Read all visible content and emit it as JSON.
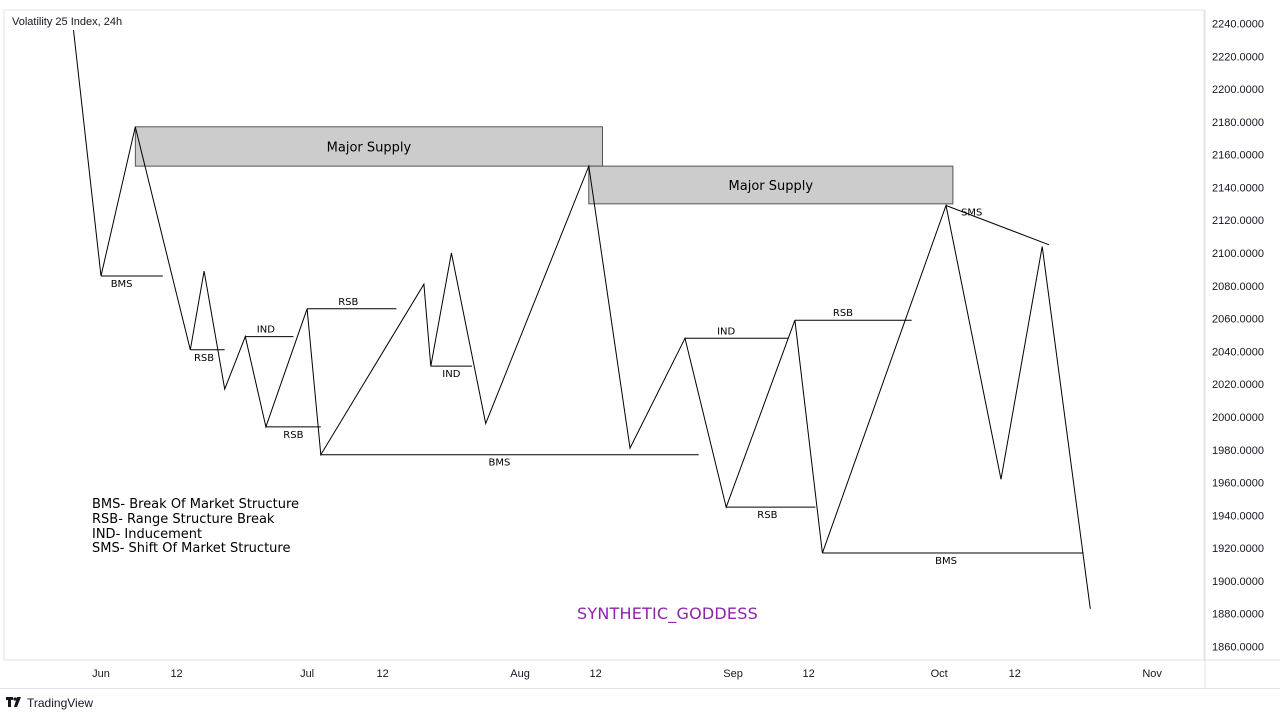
{
  "title": "Volatility 25 Index, 24h",
  "legend": {
    "items": [
      "BMS- Break Of Market Structure",
      "RSB- Range Structure Break",
      "IND- Inducement",
      "SMS- Shift Of Market Structure"
    ]
  },
  "watermark": "SYNTHETIC_GODDESS",
  "brand": {
    "logo_icon": "tradingview-logo-icon",
    "name": "TradingView"
  },
  "colors": {
    "line": "#000000",
    "zone_fill": "#cccccc",
    "watermark": "#8e24aa",
    "axis_text": "#131722",
    "grid": "#e0e3eb"
  },
  "chart_data": {
    "type": "line",
    "title": "Volatility 25 Index, 24h",
    "xlabel": "",
    "ylabel": "",
    "ylim": [
      1850,
      2245
    ],
    "y_ticks": [
      "2240.0000",
      "2220.0000",
      "2200.0000",
      "2180.0000",
      "2160.0000",
      "2140.0000",
      "2120.0000",
      "2100.0000",
      "2080.0000",
      "2060.0000",
      "2040.0000",
      "2020.0000",
      "2000.0000",
      "1980.0000",
      "1960.0000",
      "1940.0000",
      "1920.0000",
      "1900.0000",
      "1880.0000",
      "1860.0000"
    ],
    "x_ticks": [
      {
        "label": "Jun",
        "date": "2023-06-01"
      },
      {
        "label": "12",
        "date": "2023-06-12"
      },
      {
        "label": "Jul",
        "date": "2023-07-01"
      },
      {
        "label": "12",
        "date": "2023-07-12"
      },
      {
        "label": "Aug",
        "date": "2023-08-01"
      },
      {
        "label": "12",
        "date": "2023-08-12"
      },
      {
        "label": "Sep",
        "date": "2023-09-01"
      },
      {
        "label": "12",
        "date": "2023-09-12"
      },
      {
        "label": "Oct",
        "date": "2023-10-01"
      },
      {
        "label": "12",
        "date": "2023-10-12"
      },
      {
        "label": "Nov",
        "date": "2023-11-01"
      }
    ],
    "grid": false,
    "series": [
      {
        "points": [
          [
            "2023-05-28",
            2236
          ],
          [
            "2023-06-01",
            2086
          ],
          [
            "2023-06-06",
            2177
          ],
          [
            "2023-06-14",
            2041
          ],
          [
            "2023-06-16",
            2089
          ],
          [
            "2023-06-19",
            2017
          ],
          [
            "2023-06-22",
            2049
          ],
          [
            "2023-06-25",
            1994
          ],
          [
            "2023-07-01",
            2066
          ],
          [
            "2023-07-03",
            1977
          ],
          [
            "2023-07-18",
            2081
          ],
          [
            "2023-07-19",
            2031
          ],
          [
            "2023-07-22",
            2100
          ],
          [
            "2023-07-27",
            1996
          ],
          [
            "2023-08-11",
            2153
          ],
          [
            "2023-08-17",
            1981
          ],
          [
            "2023-08-25",
            2048
          ],
          [
            "2023-08-31",
            1945
          ],
          [
            "2023-09-10",
            2059
          ],
          [
            "2023-09-14",
            1917
          ],
          [
            "2023-10-02",
            2129
          ],
          [
            "2023-10-10",
            1962
          ],
          [
            "2023-10-16",
            2104
          ],
          [
            "2023-10-23",
            1883
          ]
        ]
      }
    ],
    "zones": [
      {
        "label": "Major Supply",
        "x1": "2023-06-06",
        "x2": "2023-08-13",
        "y1": 2153,
        "y2": 2177
      },
      {
        "label": "Major Supply",
        "x1": "2023-08-11",
        "x2": "2023-10-03",
        "y1": 2130,
        "y2": 2153
      }
    ],
    "levels": [
      {
        "label": "BMS",
        "x1": "2023-06-01",
        "x2": "2023-06-10",
        "y": 2086,
        "label_x": "2023-06-04",
        "label_pos": "below"
      },
      {
        "label": "RSB",
        "x1": "2023-06-14",
        "x2": "2023-06-19",
        "y": 2041,
        "label_x": "2023-06-16",
        "label_pos": "below"
      },
      {
        "label": "IND",
        "x1": "2023-06-22",
        "x2": "2023-06-29",
        "y": 2049,
        "label_x": "2023-06-25",
        "label_pos": "above"
      },
      {
        "label": "RSB",
        "x1": "2023-07-01",
        "x2": "2023-07-14",
        "y": 2066,
        "label_x": "2023-07-07",
        "label_pos": "above"
      },
      {
        "label": "RSB",
        "x1": "2023-06-25",
        "x2": "2023-07-03",
        "y": 1994,
        "label_x": "2023-06-29",
        "label_pos": "below"
      },
      {
        "label": "IND",
        "x1": "2023-07-19",
        "x2": "2023-07-25",
        "y": 2031,
        "label_x": "2023-07-22",
        "label_pos": "below"
      },
      {
        "label": "BMS",
        "x1": "2023-07-03",
        "x2": "2023-08-27",
        "y": 1977,
        "label_x": "2023-07-29",
        "label_pos": "below"
      },
      {
        "label": "IND",
        "x1": "2023-08-25",
        "x2": "2023-09-09",
        "y": 2048,
        "label_x": "2023-08-31",
        "label_pos": "above"
      },
      {
        "label": "RSB",
        "x1": "2023-09-10",
        "x2": "2023-09-27",
        "y": 2059,
        "label_x": "2023-09-17",
        "label_pos": "above"
      },
      {
        "label": "RSB",
        "x1": "2023-08-31",
        "x2": "2023-09-13",
        "y": 1945,
        "label_x": "2023-09-06",
        "label_pos": "below"
      },
      {
        "label": "BMS",
        "x1": "2023-09-14",
        "x2": "2023-10-22",
        "y": 1917,
        "label_x": "2023-10-02",
        "label_pos": "below"
      }
    ],
    "trendlines": [
      {
        "label": "SMS",
        "x1": "2023-10-02",
        "y1": 2129,
        "x2": "2023-10-17",
        "y2": 2105,
        "label_x": "2023-10-04",
        "label_y": 2124
      }
    ]
  }
}
